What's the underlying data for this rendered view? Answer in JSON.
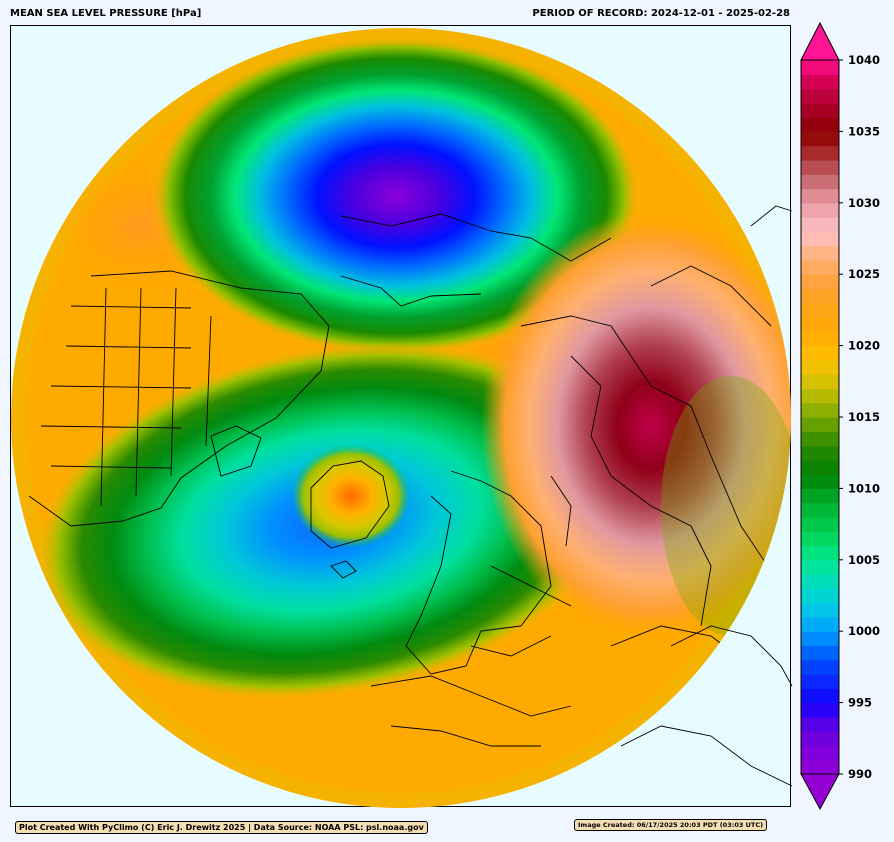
{
  "header": {
    "title": "MEAN SEA LEVEL PRESSURE [hPa]",
    "period": "PERIOD OF RECORD: 2024-12-01 - 2025-02-28"
  },
  "colorbar": {
    "ticks": [
      "990",
      "995",
      "1000",
      "1005",
      "1010",
      "1015",
      "1020",
      "1025",
      "1030",
      "1035",
      "1040"
    ],
    "range": [
      990,
      1040
    ],
    "extend": "both"
  },
  "colors": {
    "ocean": "#e6fcff",
    "page_bg": "#f0f6ff",
    "low_990": "#9400d3",
    "mid_1005": "#00e5c0",
    "mid_1012": "#008000",
    "base_1020": "#ffa500",
    "high_1035": "#8b0000",
    "high_1040": "#ff1493"
  },
  "footer": {
    "credit": "Plot Created With PyClimo (C) Eric J. Drewitz 2025 | Data Source: NOAA PSL: psl.noaa.gov",
    "created": "Image Created: 06/17/2025 20:03 PDT (03:03 UTC)"
  }
}
